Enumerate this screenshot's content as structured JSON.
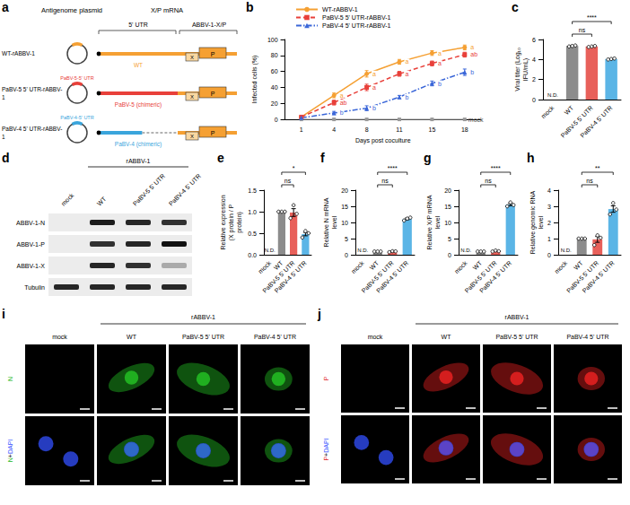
{
  "chart_data": [
    {
      "panel": "b",
      "type": "line",
      "legend": "top-left",
      "grid": false,
      "xlabel": "Days post coculture",
      "ylabel": "Infected cells (%)",
      "categories": [
        "1",
        "4",
        "8",
        "11",
        "15",
        "18"
      ],
      "ylim": [
        0,
        100
      ],
      "yticks": [
        0,
        20,
        40,
        60,
        80,
        100
      ],
      "series": [
        {
          "name": "WT-rABBV-1",
          "color": "#F5A033",
          "marker": "circle",
          "line_style": "solid",
          "values": [
            3,
            30,
            57,
            72,
            83,
            90
          ],
          "errors": [
            1,
            3,
            4,
            3,
            3,
            3
          ],
          "letters": [
            null,
            "a",
            "a",
            "a",
            "a",
            "a"
          ]
        },
        {
          "name": "PaBV-5 5' UTR-rABBV-1",
          "color": "#E8403A",
          "marker": "square",
          "line_style": "dashed",
          "values": [
            3,
            21,
            40,
            57,
            70,
            81
          ],
          "errors": [
            1,
            3,
            4,
            3,
            3,
            3
          ],
          "letters": [
            null,
            "ab",
            "a",
            "a",
            "a",
            "ab"
          ]
        },
        {
          "name": "PaBV-4 5' UTR-rABBV-1",
          "color": "#3A66D8",
          "marker": "triangle",
          "line_style": "dashdot",
          "values": [
            2,
            8,
            14,
            28,
            45,
            59
          ],
          "errors": [
            1,
            2,
            3,
            2,
            3,
            4
          ],
          "letters": [
            null,
            "b",
            "b",
            "b",
            "b",
            "b"
          ]
        }
      ],
      "baseline": {
        "name": "mock",
        "color": "#999999",
        "marker": "square",
        "values": [
          0,
          0,
          0,
          0,
          0,
          0
        ]
      }
    },
    {
      "panel": "c",
      "type": "bar",
      "grid": false,
      "ylabel": "Viral titer (Log₁₀ IFU/mL)",
      "categories": [
        "mock",
        "WT",
        "PaBV-5 5' UTR",
        "PaBV-4 5' UTR"
      ],
      "values": [
        null,
        5.35,
        5.3,
        4.05
      ],
      "errors": [
        null,
        0.03,
        0.03,
        0.03
      ],
      "points": [
        [],
        [
          5.3,
          5.35,
          5.4
        ],
        [
          5.25,
          5.3,
          5.35
        ],
        [
          4.0,
          4.05,
          4.1
        ]
      ],
      "colors": [
        null,
        "#8C8C8C",
        "#E8605A",
        "#5BB5E6"
      ],
      "ylim": [
        0,
        6
      ],
      "yticks": [
        0,
        2,
        4,
        6
      ],
      "annotations": [
        {
          "category": "mock",
          "text": "N.D."
        }
      ],
      "comparisons": [
        {
          "from": "WT",
          "to": "PaBV-5 5' UTR",
          "label": "ns"
        },
        {
          "from": "WT",
          "to": "PaBV-4 5' UTR",
          "label": "****"
        }
      ]
    },
    {
      "panel": "e",
      "type": "bar",
      "grid": false,
      "ylabel": "Relative expression (X protein / P protein)",
      "categories": [
        "mock",
        "WT",
        "PaBV-5 5' UTR",
        "PaBV-4 5' UTR"
      ],
      "values": [
        null,
        1,
        0.98,
        0.48
      ],
      "errors": [
        null,
        0,
        0.09,
        0.04
      ],
      "points": [
        [],
        [
          1,
          1,
          1
        ],
        [
          0.85,
          1.15,
          0.95
        ],
        [
          0.4,
          0.55,
          0.5
        ]
      ],
      "colors": [
        null,
        "#8C8C8C",
        "#E8605A",
        "#5BB5E6"
      ],
      "ylim": [
        0,
        1.5
      ],
      "yticks": [
        {
          "value": 0,
          "label": "0.0"
        },
        0.5,
        {
          "value": 1,
          "label": "1.0"
        },
        1.5
      ],
      "annotations": [
        {
          "category": "mock",
          "text": "N.D."
        }
      ],
      "comparisons": [
        {
          "from": "WT",
          "to": "PaBV-5 5' UTR",
          "label": "ns"
        },
        {
          "from": "WT",
          "to": "PaBV-4 5' UTR",
          "label": "*"
        }
      ]
    },
    {
      "panel": "f",
      "type": "bar",
      "grid": false,
      "ylabel": "Relative N mRNA level",
      "categories": [
        "mock",
        "WT",
        "PaBV-5 5' UTR",
        "PaBV-4 5' UTR"
      ],
      "values": [
        null,
        1,
        0.98,
        11.1
      ],
      "errors": [
        null,
        0,
        0.09,
        0.26
      ],
      "points": [
        [],
        [
          1,
          1,
          1
        ],
        [
          0.8,
          1.1,
          1.05
        ],
        [
          10.6,
          11.2,
          11.5
        ]
      ],
      "colors": [
        null,
        "#8C8C8C",
        "#E8605A",
        "#5BB5E6"
      ],
      "ylim": [
        0,
        20
      ],
      "yticks": [
        0,
        5,
        10,
        15,
        20
      ],
      "annotations": [
        {
          "category": "mock",
          "text": "N.D."
        }
      ],
      "comparisons": [
        {
          "from": "WT",
          "to": "PaBV-5 5' UTR",
          "label": "ns"
        },
        {
          "from": "WT",
          "to": "PaBV-4 5' UTR",
          "label": "****"
        }
      ]
    },
    {
      "panel": "g",
      "type": "bar",
      "grid": false,
      "ylabel": "Relative X/P mRNA level",
      "categories": [
        "mock",
        "WT",
        "PaBV-5 5' UTR",
        "PaBV-4 5' UTR"
      ],
      "values": [
        null,
        1,
        1.13,
        15.53
      ],
      "errors": [
        null,
        0,
        0.09,
        0.35
      ],
      "points": [
        [],
        [
          1,
          1,
          1
        ],
        [
          1.0,
          1.3,
          1.1
        ],
        [
          15,
          16.2,
          15.4
        ]
      ],
      "colors": [
        null,
        "#8C8C8C",
        "#E8605A",
        "#5BB5E6"
      ],
      "ylim": [
        0,
        20
      ],
      "yticks": [
        0,
        5,
        10,
        15,
        20
      ],
      "annotations": [
        {
          "category": "mock",
          "text": "N.D."
        }
      ],
      "comparisons": [
        {
          "from": "WT",
          "to": "PaBV-5 5' UTR",
          "label": "ns"
        },
        {
          "from": "WT",
          "to": "PaBV-4 5' UTR",
          "label": "****"
        }
      ]
    },
    {
      "panel": "h",
      "type": "bar",
      "grid": false,
      "ylabel": "Relative genomic RNA level",
      "categories": [
        "mock",
        "WT",
        "PaBV-5 5' UTR",
        "PaBV-4 5' UTR"
      ],
      "values": [
        null,
        1,
        0.95,
        2.83
      ],
      "errors": [
        null,
        0,
        0.18,
        0.2
      ],
      "points": [
        [],
        [
          1,
          1,
          1
        ],
        [
          0.6,
          1.2,
          1.05
        ],
        [
          2.5,
          3.2,
          2.8
        ]
      ],
      "colors": [
        null,
        "#8C8C8C",
        "#E8605A",
        "#5BB5E6"
      ],
      "ylim": [
        0,
        4
      ],
      "yticks": [
        0,
        1,
        2,
        3,
        4
      ],
      "annotations": [
        {
          "category": "mock",
          "text": "N.D."
        }
      ],
      "comparisons": [
        {
          "from": "WT",
          "to": "PaBV-5 5' UTR",
          "label": "ns"
        },
        {
          "from": "WT",
          "to": "PaBV-4 5' UTR",
          "label": "**"
        }
      ]
    }
  ],
  "diagram_a": {
    "panel": "a",
    "header": {
      "plasmid": "Antigenome plasmid",
      "mrna": "X/P mRNA"
    },
    "segments": {
      "utr": "5' UTR",
      "orf": "ABBV-1-X/P"
    },
    "genes": [
      "X",
      "P"
    ],
    "rows": [
      {
        "name": "WT-rABBV-1",
        "insert": null,
        "utr_label": "WT",
        "color": "#F5A033"
      },
      {
        "name": "PaBV-5 5' UTR-rABBV-1",
        "insert": "PaBV-5-5' UTR",
        "utr_label": "PaBV-5 (chimeric)",
        "color": "#E8403A"
      },
      {
        "name": "PaBV-4 5' UTR-rABBV-1",
        "insert": "PaBV-4-5' UTR",
        "utr_label": "PaBV-4 (chimeric)",
        "color": "#3AA5DC"
      }
    ]
  },
  "blot_d": {
    "panel": "d",
    "group": {
      "label": "rABBV-1",
      "lanes": [
        "WT",
        "PaBV-5 5' UTR",
        "PaBV-4 5' UTR"
      ]
    },
    "lanes": [
      "mock",
      "WT",
      "PaBV-5 5' UTR",
      "PaBV-4 5' UTR"
    ],
    "rows": [
      {
        "name": "ABBV-1-N",
        "bands": [
          0,
          0.95,
          0.9,
          0.85
        ]
      },
      {
        "name": "ABBV-1-P",
        "bands": [
          0,
          0.85,
          0.9,
          1
        ]
      },
      {
        "name": "ABBV-1-X",
        "bands": [
          0,
          0.9,
          0.85,
          0.3
        ]
      },
      {
        "name": "Tubulin",
        "bands": [
          0.9,
          0.9,
          0.9,
          0.9
        ]
      }
    ]
  },
  "images_i": {
    "panel": "i",
    "group": {
      "label": "rABBV-1",
      "columns": [
        "WT",
        "PaBV-5 5' UTR",
        "PaBV-4 5' UTR"
      ]
    },
    "columns": [
      "mock",
      "WT",
      "PaBV-5 5' UTR",
      "PaBV-4 5' UTR"
    ],
    "rows": [
      "N",
      "N+DAPI"
    ],
    "channels": [
      {
        "name": "N",
        "color": "#22B922"
      },
      {
        "name": "DAPI",
        "color": "#3350FF"
      }
    ]
  },
  "images_j": {
    "panel": "j",
    "group": {
      "label": "rABBV-1",
      "columns": [
        "WT",
        "PaBV-5 5' UTR",
        "PaBV-4 5' UTR"
      ]
    },
    "columns": [
      "mock",
      "WT",
      "PaBV-5 5' UTR",
      "PaBV-4 5' UTR"
    ],
    "rows": [
      "P",
      "P+DAPI"
    ],
    "channels": [
      {
        "name": "P",
        "color": "#E02020"
      },
      {
        "name": "DAPI",
        "color": "#3350FF"
      }
    ]
  }
}
